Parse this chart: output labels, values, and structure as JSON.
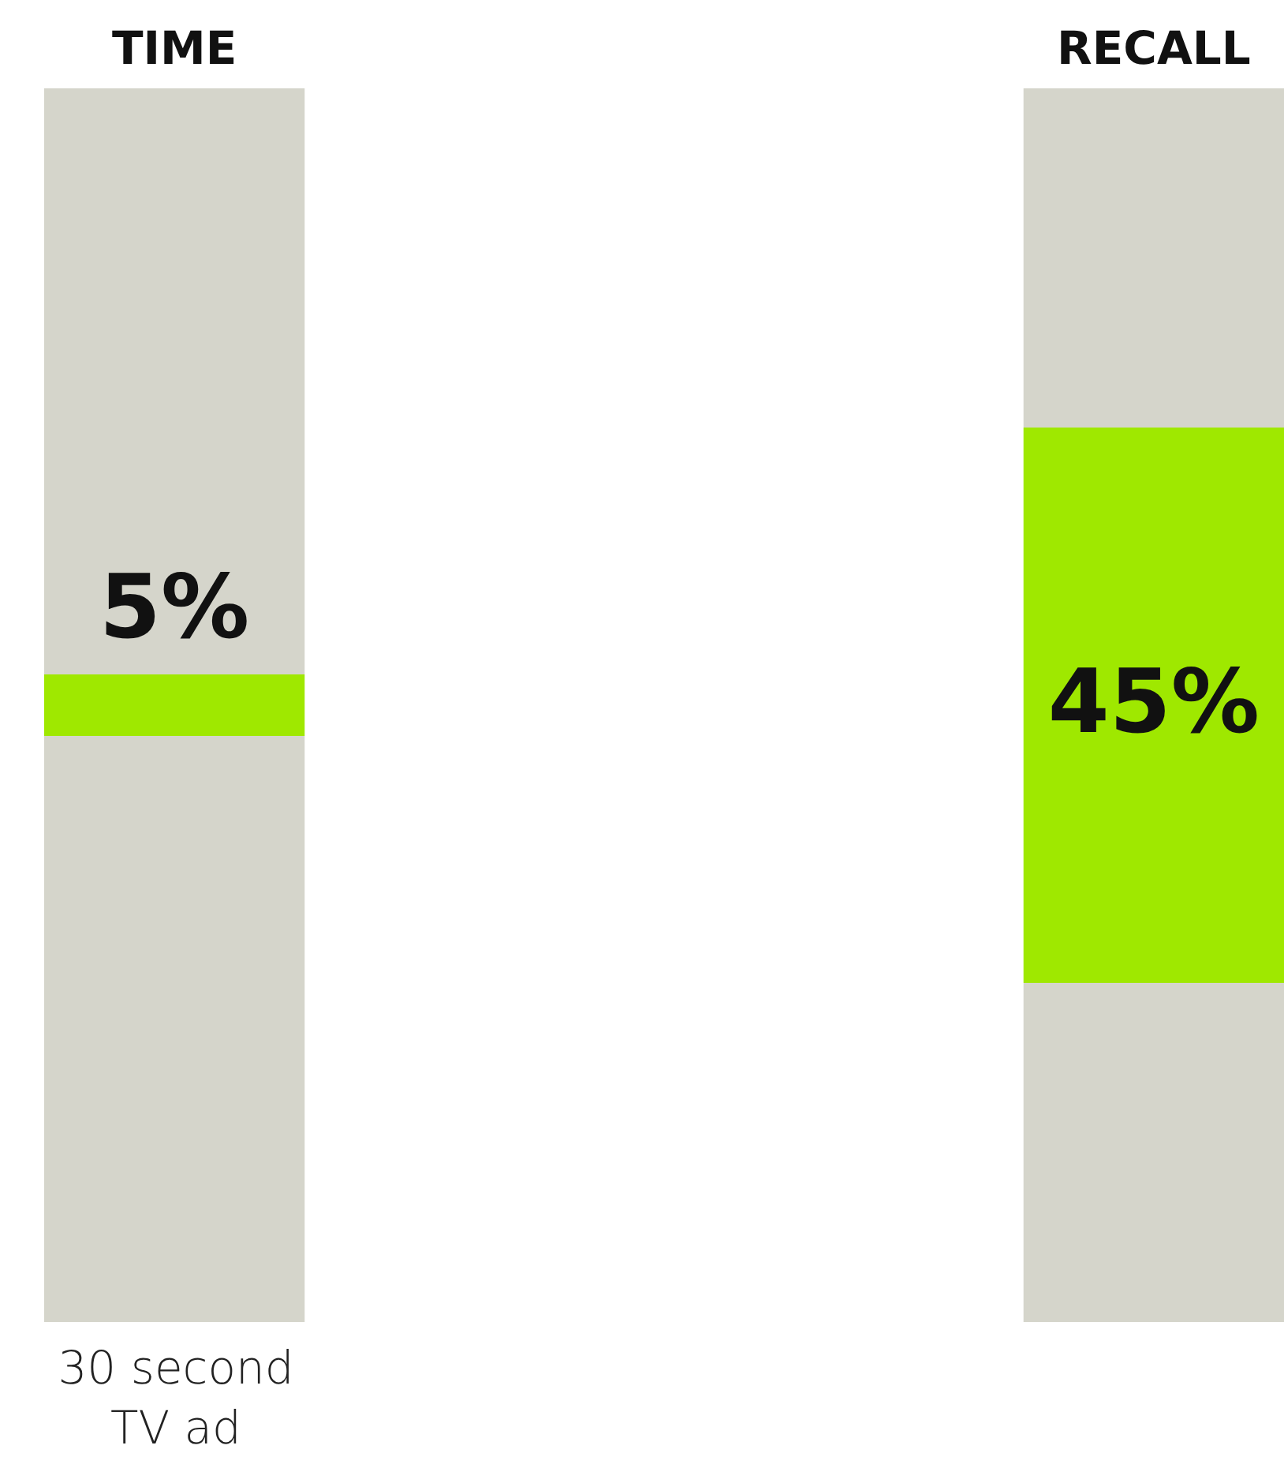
{
  "chart_data": {
    "type": "bar",
    "categories": [
      "TIME",
      "RECALL"
    ],
    "stacked": true,
    "ylim": [
      0,
      100
    ],
    "tick_labels": "x",
    "series": [
      {
        "color": "#d5d5cb",
        "values": [
          47.5,
          27.5
        ]
      },
      {
        "color": "#9fe800",
        "values": [
          5,
          45
        ],
        "value_labels": [
          "5%",
          "45%"
        ]
      },
      {
        "color": "#d5d5cb",
        "values": [
          47.5,
          27.5
        ]
      }
    ],
    "annotations": [
      "30 second TV ad"
    ]
  }
}
